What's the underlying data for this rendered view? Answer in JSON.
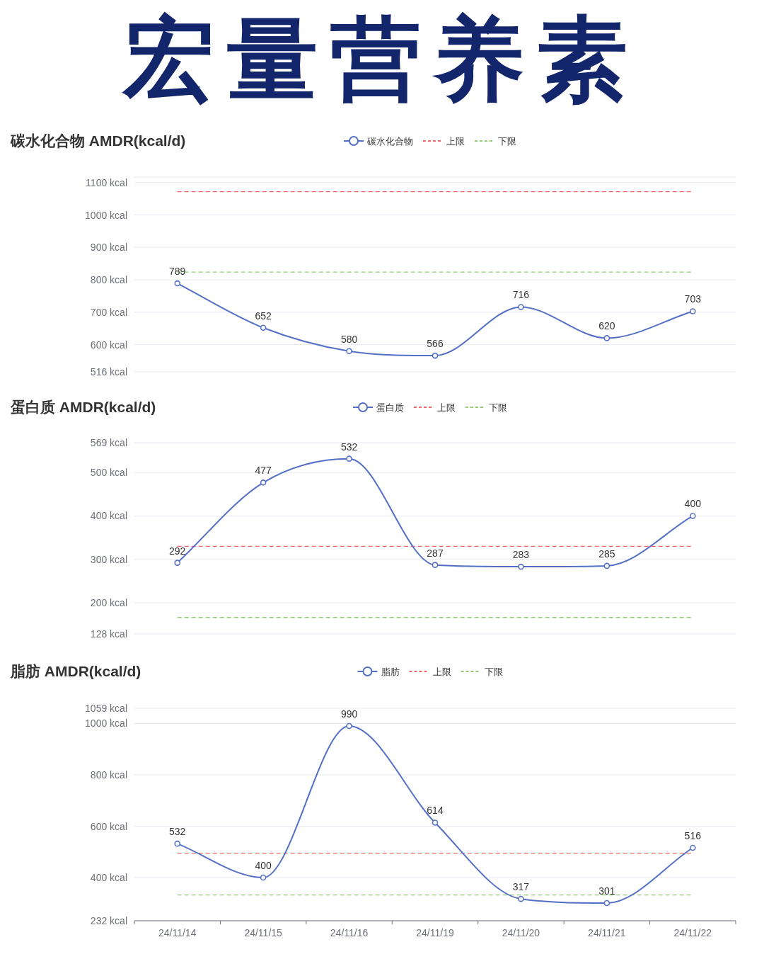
{
  "chart_data": [
    {
      "type": "other",
      "title": "宏量营养素"
    },
    {
      "type": "line",
      "title": "碳水化合物 AMDR(kcal/d)",
      "categories": [
        null,
        null,
        null,
        null,
        null,
        null,
        null
      ],
      "series": [
        {
          "name": "碳水化合物",
          "color": "#5470c6",
          "values": [
            789,
            652,
            580,
            566,
            716,
            620,
            703
          ]
        }
      ],
      "ref_lines": [
        {
          "axis": "y",
          "value": 1072,
          "label": "上限",
          "color": "#ee6666",
          "line_style": "dashed"
        },
        {
          "axis": "y",
          "value": 824,
          "label": "下限",
          "color": "#91cc75",
          "line_style": "dashed"
        }
      ],
      "ylim": [
        516,
        1117
      ],
      "yticks": [
        {
          "value": 516,
          "label": "516 kcal"
        },
        {
          "value": 600,
          "label": "600 kcal"
        },
        {
          "value": 700,
          "label": "700 kcal"
        },
        {
          "value": 800,
          "label": "800 kcal"
        },
        {
          "value": 900,
          "label": "900 kcal"
        },
        {
          "value": 1000,
          "label": "1000 kcal"
        },
        {
          "value": 1100,
          "label": "1100 kcal"
        },
        {
          "value": 1117,
          "label": null
        }
      ],
      "grid": "y",
      "legend": "top",
      "marker": "circle",
      "data_labels": true,
      "tick_labels": "y"
    },
    {
      "type": "line",
      "title": "蛋白质 AMDR(kcal/d)",
      "categories": [
        null,
        null,
        null,
        null,
        null,
        null,
        null
      ],
      "series": [
        {
          "name": "蛋白质",
          "color": "#5470c6",
          "values": [
            292,
            477,
            532,
            287,
            283,
            285,
            400
          ]
        }
      ],
      "ref_lines": [
        {
          "axis": "y",
          "value": 330,
          "label": "上限",
          "color": "#ee6666",
          "line_style": "dashed"
        },
        {
          "axis": "y",
          "value": 166,
          "label": "下限",
          "color": "#91cc75",
          "line_style": "dashed"
        }
      ],
      "ylim": [
        128,
        569
      ],
      "yticks": [
        {
          "value": 128,
          "label": "128 kcal"
        },
        {
          "value": 200,
          "label": "200 kcal"
        },
        {
          "value": 300,
          "label": "300 kcal"
        },
        {
          "value": 400,
          "label": "400 kcal"
        },
        {
          "value": 500,
          "label": "500 kcal"
        },
        {
          "value": 569,
          "label": "569 kcal"
        }
      ],
      "grid": "y",
      "legend": "top",
      "marker": "circle",
      "data_labels": true,
      "tick_labels": "y"
    },
    {
      "type": "line",
      "title": "脂肪 AMDR(kcal/d)",
      "categories": [
        "24/11/14",
        "24/11/15",
        "24/11/16",
        "24/11/19",
        "24/11/20",
        "24/11/21",
        "24/11/22"
      ],
      "series": [
        {
          "name": "脂肪",
          "color": "#5470c6",
          "values": [
            532,
            400,
            990,
            614,
            317,
            301,
            516
          ]
        }
      ],
      "ref_lines": [
        {
          "axis": "y",
          "value": 495,
          "label": "上限",
          "color": "#ee6666",
          "line_style": "dashed"
        },
        {
          "axis": "y",
          "value": 332,
          "label": "下限",
          "color": "#91cc75",
          "line_style": "dashed"
        }
      ],
      "ylim": [
        232,
        1059
      ],
      "yticks": [
        {
          "value": 232,
          "label": "232 kcal"
        },
        {
          "value": 400,
          "label": "400 kcal"
        },
        {
          "value": 600,
          "label": "600 kcal"
        },
        {
          "value": 800,
          "label": "800 kcal"
        },
        {
          "value": 1000,
          "label": "1000 kcal"
        },
        {
          "value": 1059,
          "label": "1059 kcal"
        }
      ],
      "grid": "y",
      "legend": "top",
      "marker": "circle",
      "data_labels": true
    }
  ]
}
